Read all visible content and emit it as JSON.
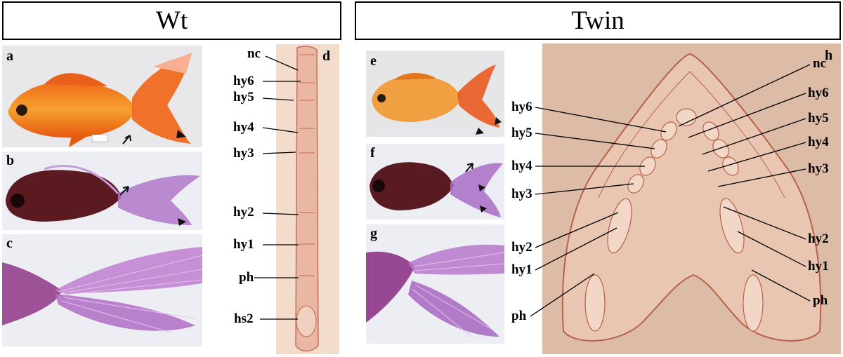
{
  "headers": {
    "wt": "Wt",
    "twin": "Twin"
  },
  "panels": {
    "a": "a",
    "b": "b",
    "c": "c",
    "d": "d",
    "e": "e",
    "f": "f",
    "g": "g",
    "h": "h"
  },
  "panel_a_tag": "",
  "section_d_labels": [
    "nc",
    "hy6",
    "hy5",
    "hy4",
    "hy3",
    "hy2",
    "hy1",
    "ph",
    "hs2"
  ],
  "section_h_left_labels": [
    "hy6",
    "hy5",
    "hy4",
    "hy3",
    "hy2",
    "hy1",
    "ph"
  ],
  "section_h_right_labels": [
    "nc",
    "hy6",
    "hy5",
    "hy4",
    "hy3",
    "hy2",
    "hy1",
    "ph"
  ],
  "colors": {
    "goldfish_orange": "#f25a12",
    "stain_purple": "#9a3aa8",
    "tissue_pink": "#e9c2b0",
    "photo_bg": "#e6e6e8"
  }
}
